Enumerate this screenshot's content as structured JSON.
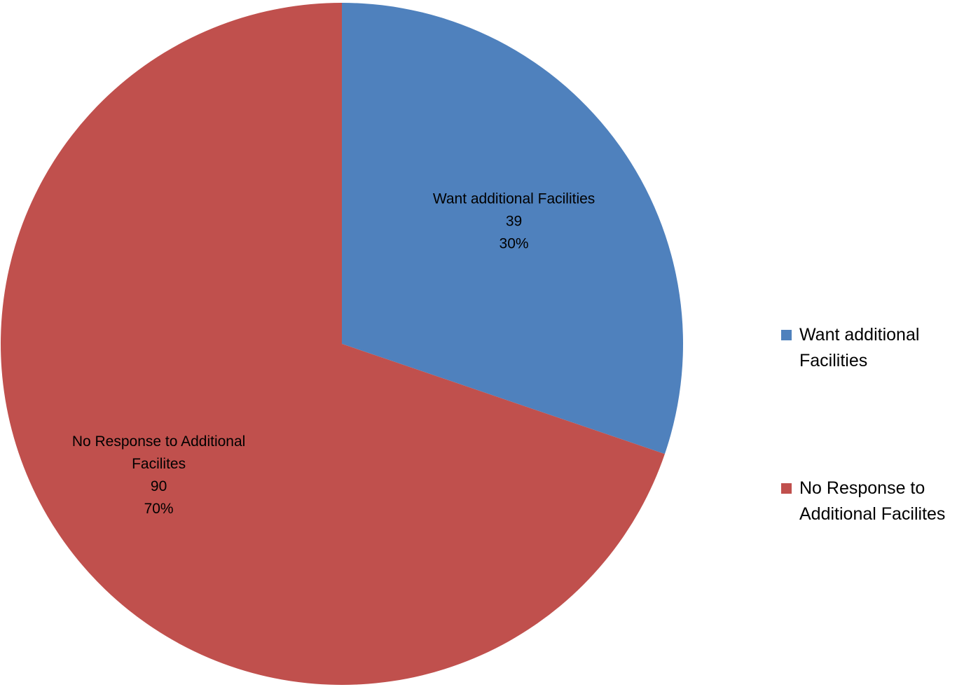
{
  "chart_data": {
    "type": "pie",
    "title": "",
    "slices": [
      {
        "name": "Want additional Facilities",
        "label_lines": [
          "Want additional Facilities"
        ],
        "legend_lines": [
          "Want additional",
          "Facilities"
        ],
        "value": 39,
        "percent_label": "30%",
        "color": "#4F81BD"
      },
      {
        "name": "No Response to Additional Facilites",
        "label_lines": [
          "No Response to Additional",
          "Facilites"
        ],
        "legend_lines": [
          "No Response to",
          "Additional Facilites"
        ],
        "value": 90,
        "percent_label": "70%",
        "color": "#C0504D"
      }
    ],
    "legend_position": "right",
    "start_angle_deg": 0,
    "direction": "clockwise"
  }
}
